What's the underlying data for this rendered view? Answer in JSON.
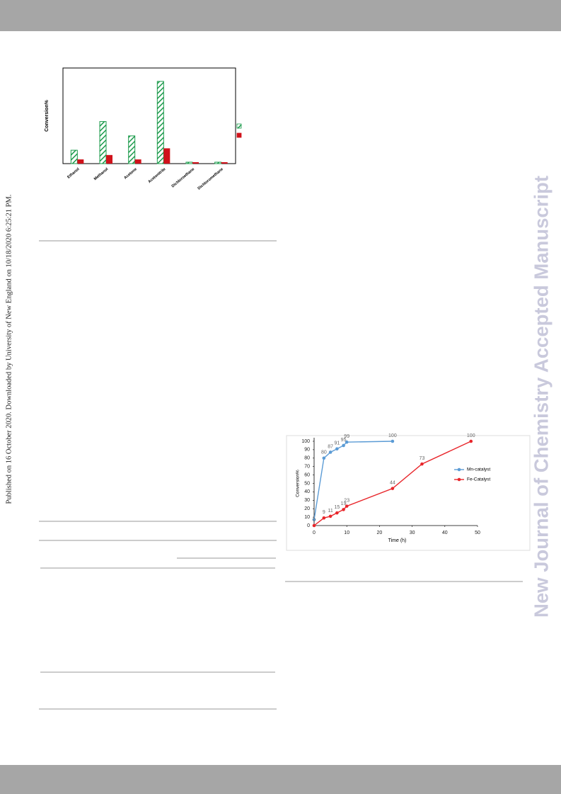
{
  "side_note": "Published on 16 October 2020. Downloaded by University of New England on 10/18/2020 6:25:21 PM.",
  "watermark": "New Journal of Chemistry Accepted Manuscript",
  "chart_data": [
    {
      "type": "bar",
      "y_label": "Conversion%",
      "categories": [
        "Ethanol",
        "Methanol",
        "Acetone",
        "Acetonitrile",
        "Dichloroethane",
        "Dichloromethane"
      ],
      "series": [
        {
          "color": "#1a9a4a",
          "hatch": true,
          "values": [
            14,
            44,
            29,
            86,
            1.5,
            1.5
          ]
        },
        {
          "color": "#d0121b",
          "hatch": false,
          "values": [
            4.4,
            9,
            4.4,
            16,
            1.5,
            1.5
          ]
        }
      ],
      "ylim": [
        0,
        100
      ]
    },
    {
      "type": "line",
      "x_label": "Time (h)",
      "y_label": "Conversion%",
      "legend": "right",
      "series": [
        {
          "name": "Mn-catalyst",
          "color": "#5b9bd5",
          "x": [
            0,
            3,
            5,
            7,
            9,
            10,
            24
          ],
          "values": [
            7,
            80,
            87,
            91,
            95,
            99,
            100
          ],
          "value_labels": [
            null,
            "80",
            "87",
            "91",
            "95",
            "99",
            "100"
          ]
        },
        {
          "name": "Fe-Catalyst",
          "color": "#e8262b",
          "x": [
            0,
            3,
            5,
            7,
            9,
            10,
            24,
            33,
            48
          ],
          "values": [
            0,
            9,
            11,
            15,
            19,
            23,
            44,
            73,
            100
          ]
        }
      ],
      "xlim": [
        0,
        50
      ],
      "xticks": [
        0,
        10,
        20,
        30,
        40,
        50
      ],
      "ylim": [
        0,
        100
      ],
      "yticks": [
        0,
        10,
        20,
        30,
        40,
        50,
        60,
        70,
        80,
        90,
        100
      ]
    }
  ]
}
